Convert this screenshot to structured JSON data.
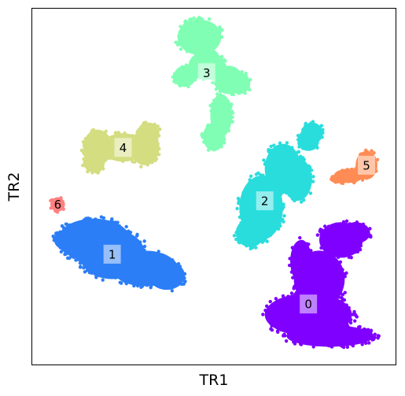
{
  "chart_data": {
    "type": "scatter",
    "title": "",
    "xlabel": "TR1",
    "ylabel": "TR2",
    "xticks": [],
    "yticks": [],
    "grid": false,
    "legend": "none",
    "xlim": [
      0,
      100
    ],
    "ylim": [
      0,
      100
    ],
    "clusters": [
      {
        "label": "0",
        "color": "#7f00ff",
        "center": [
          76,
          17
        ],
        "label_pos": [
          76,
          17
        ],
        "lobes": [
          [
            76,
            14,
            12,
            6
          ],
          [
            79,
            24,
            7,
            8
          ],
          [
            85,
            35,
            6,
            5
          ],
          [
            89,
            37,
            4,
            3
          ],
          [
            82,
            8,
            12,
            3
          ],
          [
            74,
            29,
            3,
            6
          ]
        ]
      },
      {
        "label": "1",
        "color": "#2c7ef7",
        "center": [
          22,
          31
        ],
        "label_pos": [
          22,
          31
        ],
        "lobes": [
          [
            17,
            35,
            10,
            6
          ],
          [
            22,
            31,
            9,
            7
          ],
          [
            31,
            27,
            9,
            5
          ],
          [
            37,
            25,
            5,
            4
          ],
          [
            10,
            35,
            4,
            3
          ]
        ]
      },
      {
        "label": "2",
        "color": "#2adddd",
        "center": [
          64,
          46
        ],
        "label_pos": [
          64,
          46
        ],
        "lobes": [
          [
            63,
            44,
            6,
            9
          ],
          [
            60,
            37,
            4,
            4
          ],
          [
            69,
            55,
            5,
            7
          ],
          [
            73,
            52,
            4,
            6
          ],
          [
            76,
            63,
            3,
            3
          ],
          [
            77,
            65,
            3,
            3
          ]
        ]
      },
      {
        "label": "3",
        "color": "#80ffb4",
        "center": [
          48,
          82
        ],
        "label_pos": [
          48,
          82
        ],
        "lobes": [
          [
            46,
            92,
            6,
            5
          ],
          [
            48,
            84,
            5,
            4
          ],
          [
            54,
            80,
            4,
            4
          ],
          [
            57,
            79,
            3,
            3
          ],
          [
            52,
            70,
            3,
            6
          ],
          [
            50,
            64,
            3,
            4
          ],
          [
            42,
            81,
            3,
            3
          ]
        ]
      },
      {
        "label": "4",
        "color": "#d4dd80",
        "center": [
          25,
          61
        ],
        "label_pos": [
          25,
          61
        ],
        "lobes": [
          [
            18,
            61,
            4,
            5
          ],
          [
            31,
            61,
            4,
            5
          ],
          [
            25,
            61,
            6,
            4
          ],
          [
            17,
            57,
            3,
            3
          ],
          [
            32,
            65,
            3,
            3
          ]
        ]
      },
      {
        "label": "5",
        "color": "#ff8c55",
        "center": [
          92,
          56
        ],
        "label_pos": [
          92,
          56
        ],
        "lobes": [
          [
            92,
            56,
            3,
            4
          ],
          [
            87,
            53,
            4,
            2
          ],
          [
            84,
            52,
            2,
            1
          ]
        ]
      },
      {
        "label": "6",
        "color": "#ff0000",
        "center": [
          7,
          45
        ],
        "label_pos": [
          7,
          45
        ],
        "lobes": [
          [
            7,
            45,
            2,
            2
          ]
        ]
      }
    ]
  }
}
